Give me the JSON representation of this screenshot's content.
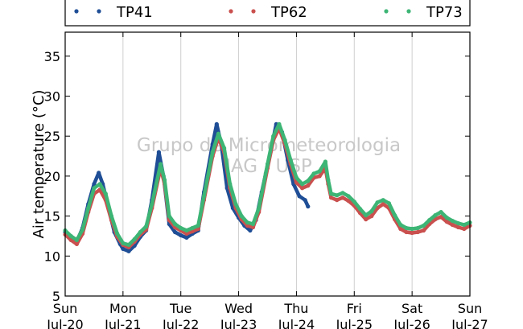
{
  "chart_data": {
    "type": "scatter",
    "title": "",
    "ylabel": "Air temperature (°C)",
    "xlabel": "",
    "ylim": [
      5,
      38
    ],
    "yticks": [
      5,
      10,
      15,
      20,
      25,
      30,
      35
    ],
    "xlim_days": [
      0,
      7
    ],
    "xticks": [
      {
        "day": "Sun",
        "date": "Jul-20"
      },
      {
        "day": "Mon",
        "date": "Jul-21"
      },
      {
        "day": "Tue",
        "date": "Jul-22"
      },
      {
        "day": "Wed",
        "date": "Jul-23"
      },
      {
        "day": "Thu",
        "date": "Jul-24"
      },
      {
        "day": "Fri",
        "date": "Jul-25"
      },
      {
        "day": "Sat",
        "date": "Jul-26"
      },
      {
        "day": "Sun",
        "date": "Jul-27"
      }
    ],
    "grid": "vertical",
    "legend_position": "top",
    "watermark": [
      "Grupo de Micrometeorologia",
      "IAG / USP"
    ],
    "series": [
      {
        "name": "TP41",
        "color": "#1f4e96",
        "points": [
          [
            0.0,
            13.0
          ],
          [
            0.1,
            12.2
          ],
          [
            0.2,
            11.8
          ],
          [
            0.3,
            13.5
          ],
          [
            0.4,
            16.5
          ],
          [
            0.5,
            19.0
          ],
          [
            0.58,
            20.4
          ],
          [
            0.65,
            19.0
          ],
          [
            0.75,
            16.0
          ],
          [
            0.85,
            13.0
          ],
          [
            0.95,
            11.5
          ],
          [
            1.0,
            10.9
          ],
          [
            1.1,
            10.6
          ],
          [
            1.2,
            11.3
          ],
          [
            1.3,
            12.4
          ],
          [
            1.4,
            13.2
          ],
          [
            1.5,
            17.0
          ],
          [
            1.62,
            23.0
          ],
          [
            1.7,
            20.0
          ],
          [
            1.8,
            14.0
          ],
          [
            1.9,
            13.0
          ],
          [
            2.0,
            12.6
          ],
          [
            2.1,
            12.3
          ],
          [
            2.2,
            12.8
          ],
          [
            2.3,
            13.2
          ],
          [
            2.4,
            18.0
          ],
          [
            2.55,
            24.0
          ],
          [
            2.62,
            26.5
          ],
          [
            2.7,
            24.0
          ],
          [
            2.8,
            18.5
          ],
          [
            2.9,
            16.0
          ],
          [
            3.0,
            14.8
          ],
          [
            3.1,
            13.8
          ],
          [
            3.2,
            13.2
          ],
          [
            3.3,
            14.5
          ],
          [
            3.4,
            18.0
          ],
          [
            3.55,
            23.0
          ],
          [
            3.65,
            26.5
          ],
          [
            3.75,
            25.5
          ],
          [
            3.85,
            22.0
          ],
          [
            3.95,
            19.0
          ],
          [
            4.05,
            17.5
          ],
          [
            4.15,
            17.0
          ],
          [
            4.2,
            16.2
          ]
        ]
      },
      {
        "name": "TP62",
        "color": "#c9504e",
        "points": [
          [
            0.0,
            12.7
          ],
          [
            0.1,
            12.0
          ],
          [
            0.2,
            11.5
          ],
          [
            0.3,
            12.8
          ],
          [
            0.4,
            15.5
          ],
          [
            0.5,
            17.8
          ],
          [
            0.6,
            18.3
          ],
          [
            0.7,
            17.0
          ],
          [
            0.8,
            14.5
          ],
          [
            0.9,
            12.4
          ],
          [
            1.0,
            11.4
          ],
          [
            1.1,
            11.1
          ],
          [
            1.2,
            11.8
          ],
          [
            1.3,
            12.7
          ],
          [
            1.4,
            13.3
          ],
          [
            1.5,
            16.0
          ],
          [
            1.65,
            21.0
          ],
          [
            1.72,
            19.0
          ],
          [
            1.8,
            14.5
          ],
          [
            1.9,
            13.6
          ],
          [
            2.0,
            13.2
          ],
          [
            2.1,
            12.8
          ],
          [
            2.2,
            13.1
          ],
          [
            2.3,
            13.4
          ],
          [
            2.4,
            17.0
          ],
          [
            2.55,
            22.5
          ],
          [
            2.65,
            24.8
          ],
          [
            2.75,
            23.0
          ],
          [
            2.85,
            18.5
          ],
          [
            2.95,
            16.0
          ],
          [
            3.05,
            14.6
          ],
          [
            3.15,
            13.8
          ],
          [
            3.25,
            13.6
          ],
          [
            3.35,
            15.5
          ],
          [
            3.5,
            21.0
          ],
          [
            3.6,
            24.5
          ],
          [
            3.7,
            26.0
          ],
          [
            3.8,
            24.0
          ],
          [
            3.9,
            21.5
          ],
          [
            4.0,
            19.2
          ],
          [
            4.1,
            18.5
          ],
          [
            4.2,
            18.8
          ],
          [
            4.3,
            19.8
          ],
          [
            4.4,
            20.0
          ],
          [
            4.5,
            21.0
          ],
          [
            4.55,
            19.0
          ],
          [
            4.6,
            17.3
          ],
          [
            4.7,
            17.0
          ],
          [
            4.8,
            17.3
          ],
          [
            4.9,
            16.9
          ],
          [
            5.0,
            16.3
          ],
          [
            5.1,
            15.4
          ],
          [
            5.2,
            14.6
          ],
          [
            5.3,
            15.0
          ],
          [
            5.4,
            16.0
          ],
          [
            5.5,
            16.5
          ],
          [
            5.6,
            16.0
          ],
          [
            5.7,
            14.6
          ],
          [
            5.8,
            13.4
          ],
          [
            5.9,
            13.0
          ],
          [
            6.0,
            12.9
          ],
          [
            6.1,
            13.0
          ],
          [
            6.2,
            13.2
          ],
          [
            6.3,
            14.0
          ],
          [
            6.4,
            14.6
          ],
          [
            6.5,
            14.9
          ],
          [
            6.6,
            14.3
          ],
          [
            6.7,
            13.9
          ],
          [
            6.8,
            13.6
          ],
          [
            6.9,
            13.4
          ],
          [
            7.0,
            13.8
          ]
        ]
      },
      {
        "name": "TP73",
        "color": "#3db575",
        "points": [
          [
            0.0,
            13.2
          ],
          [
            0.1,
            12.5
          ],
          [
            0.2,
            12.0
          ],
          [
            0.3,
            13.3
          ],
          [
            0.4,
            16.0
          ],
          [
            0.5,
            18.5
          ],
          [
            0.6,
            19.0
          ],
          [
            0.7,
            17.8
          ],
          [
            0.8,
            15.0
          ],
          [
            0.9,
            12.8
          ],
          [
            1.0,
            11.6
          ],
          [
            1.1,
            11.4
          ],
          [
            1.2,
            12.1
          ],
          [
            1.3,
            13.0
          ],
          [
            1.4,
            13.7
          ],
          [
            1.5,
            16.5
          ],
          [
            1.65,
            21.5
          ],
          [
            1.72,
            19.5
          ],
          [
            1.8,
            15.0
          ],
          [
            1.9,
            14.0
          ],
          [
            2.0,
            13.5
          ],
          [
            2.1,
            13.2
          ],
          [
            2.2,
            13.5
          ],
          [
            2.3,
            13.8
          ],
          [
            2.4,
            17.5
          ],
          [
            2.55,
            23.0
          ],
          [
            2.65,
            25.3
          ],
          [
            2.75,
            23.5
          ],
          [
            2.85,
            19.0
          ],
          [
            2.95,
            16.5
          ],
          [
            3.05,
            15.0
          ],
          [
            3.15,
            14.2
          ],
          [
            3.25,
            14.0
          ],
          [
            3.35,
            16.0
          ],
          [
            3.5,
            21.5
          ],
          [
            3.6,
            25.0
          ],
          [
            3.7,
            26.5
          ],
          [
            3.8,
            24.5
          ],
          [
            3.9,
            22.0
          ],
          [
            4.0,
            19.8
          ],
          [
            4.1,
            19.0
          ],
          [
            4.2,
            19.4
          ],
          [
            4.3,
            20.3
          ],
          [
            4.4,
            20.6
          ],
          [
            4.5,
            21.8
          ],
          [
            4.55,
            19.5
          ],
          [
            4.6,
            17.8
          ],
          [
            4.7,
            17.6
          ],
          [
            4.8,
            17.9
          ],
          [
            4.9,
            17.5
          ],
          [
            5.0,
            16.8
          ],
          [
            5.1,
            15.9
          ],
          [
            5.2,
            15.1
          ],
          [
            5.3,
            15.6
          ],
          [
            5.4,
            16.7
          ],
          [
            5.5,
            17.0
          ],
          [
            5.6,
            16.6
          ],
          [
            5.7,
            15.1
          ],
          [
            5.8,
            13.9
          ],
          [
            5.9,
            13.5
          ],
          [
            6.0,
            13.4
          ],
          [
            6.1,
            13.5
          ],
          [
            6.2,
            13.8
          ],
          [
            6.3,
            14.5
          ],
          [
            6.4,
            15.1
          ],
          [
            6.5,
            15.5
          ],
          [
            6.6,
            14.8
          ],
          [
            6.7,
            14.4
          ],
          [
            6.8,
            14.1
          ],
          [
            6.9,
            13.9
          ],
          [
            7.0,
            14.2
          ]
        ]
      }
    ]
  }
}
